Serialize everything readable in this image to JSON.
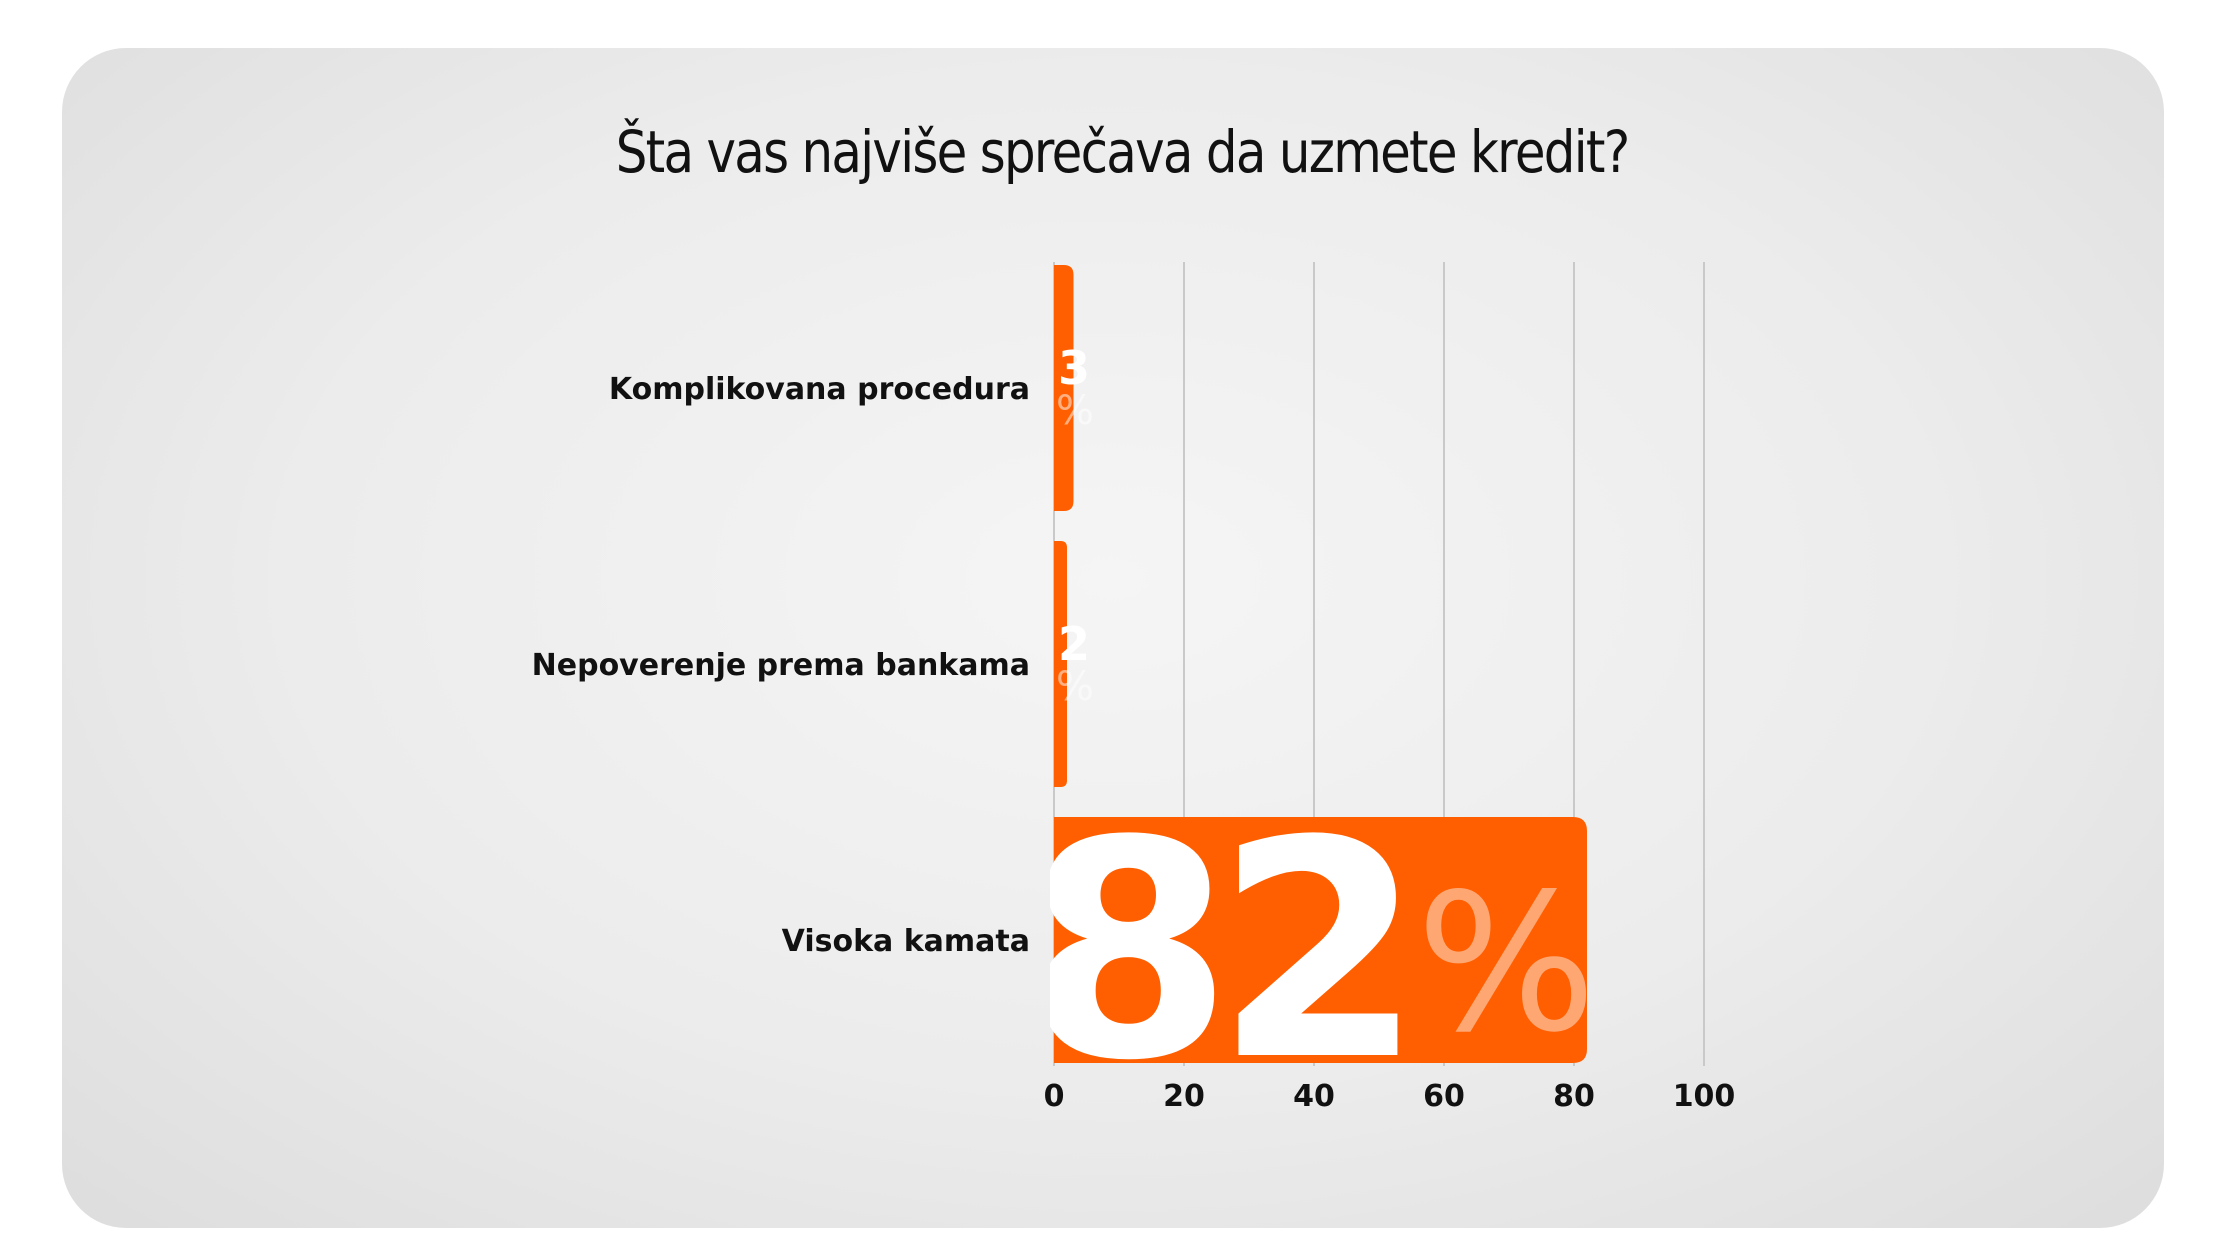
{
  "chart_data": {
    "type": "bar",
    "orientation": "horizontal",
    "title": "Šta vas najviše sprečava da uzmete kredit?",
    "categories": [
      "Komplikovana procedura",
      "Nepoverenje prema bankama",
      "Visoka kamata"
    ],
    "values": [
      3,
      2,
      82
    ],
    "value_labels": [
      "3",
      "2",
      "82"
    ],
    "value_suffix": "%",
    "xlim": [
      0,
      100
    ],
    "xticks": [
      "0",
      "20",
      "40",
      "60",
      "80",
      "100"
    ],
    "grid": "vertical",
    "legend": "none",
    "bar_color": "#ff5f00",
    "label_color": "#ffffff"
  }
}
